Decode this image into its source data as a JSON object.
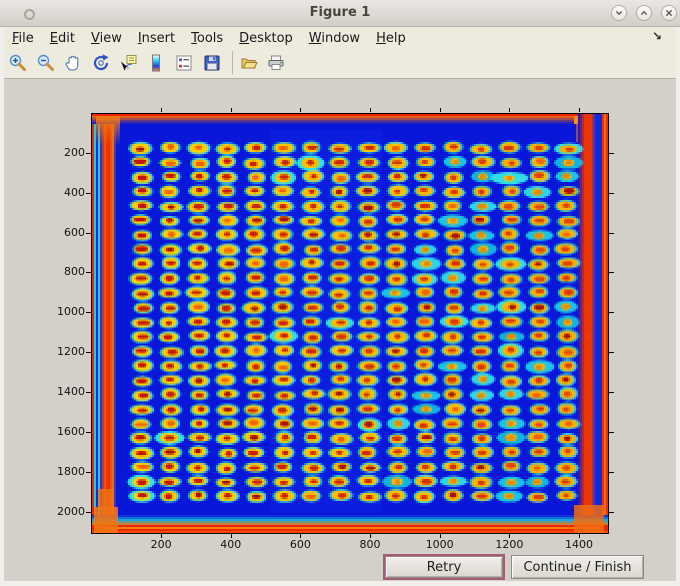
{
  "window": {
    "title": "Figure 1",
    "controls": [
      {
        "name": "minimize-button",
        "glyph": "chevron-down"
      },
      {
        "name": "maximize-button",
        "glyph": "chevron-up"
      },
      {
        "name": "close-button",
        "glyph": "x"
      }
    ]
  },
  "menu": {
    "items": [
      {
        "label": "File",
        "mnemonic": "F"
      },
      {
        "label": "Edit",
        "mnemonic": "E"
      },
      {
        "label": "View",
        "mnemonic": "V"
      },
      {
        "label": "Insert",
        "mnemonic": "I"
      },
      {
        "label": "Tools",
        "mnemonic": "T"
      },
      {
        "label": "Desktop",
        "mnemonic": "D"
      },
      {
        "label": "Window",
        "mnemonic": "W"
      },
      {
        "label": "Help",
        "mnemonic": "H"
      }
    ],
    "overflow_glyph": "↘"
  },
  "toolbar": {
    "tools": [
      {
        "name": "zoom-in"
      },
      {
        "name": "zoom-out"
      },
      {
        "name": "pan"
      },
      {
        "name": "rotate-3d"
      },
      {
        "name": "data-cursor"
      },
      {
        "name": "insert-colorbar"
      },
      {
        "name": "insert-legend"
      },
      {
        "name": "save-figure"
      },
      {
        "name": "separator"
      },
      {
        "name": "open-file"
      },
      {
        "name": "print-figure"
      }
    ]
  },
  "plot": {
    "x_ticks": [
      200,
      400,
      600,
      800,
      1000,
      1200,
      1400
    ],
    "y_ticks": [
      200,
      400,
      600,
      800,
      1000,
      1200,
      1400,
      1600,
      1800,
      2000
    ],
    "grid": {
      "cols": 16,
      "rows": 25
    },
    "colors": {
      "background_blue": "#0817d8",
      "halo_cyan": "#1cc8e8",
      "ring_yellow": "#ffd400",
      "edge_red": "#ee2600",
      "edge_orange": "#f07414",
      "core_dark_red": "#c01600",
      "core_orange_red": "#e64e00"
    }
  },
  "chart_data": {
    "type": "heatmap",
    "title": "",
    "xlabel": "",
    "ylabel": "",
    "x_ticks": [
      200,
      400,
      600,
      800,
      1000,
      1200,
      1400
    ],
    "y_ticks": [
      200,
      400,
      600,
      800,
      1000,
      1200,
      1400,
      1600,
      1800,
      2000
    ],
    "x_range": [
      1,
      1480
    ],
    "y_range": [
      1,
      2110
    ],
    "y_axis_direction": "reversed",
    "colormap": "jet",
    "legend": "none",
    "grid_lines": "off",
    "description": "Pseudocolor (jet) scan of a microarray/plate: a 16-column by 25-row grid of elliptical spots with red-orange cores, yellow rings and cyan halos on a deep blue background; plate edges glow red/orange on all four sides",
    "spot_grid": {
      "cols": 16,
      "rows": 25,
      "first_col_x": 146,
      "col_spacing_x": 81,
      "first_row_y": 176,
      "row_spacing_y": 73
    }
  },
  "buttons": {
    "retry": {
      "label": "Retry"
    },
    "continue": {
      "label": "Continue / Finish"
    }
  },
  "ui_colors": {
    "chrome_beige": "#edeade",
    "canvas_gray": "#d3cfc9",
    "titlebar_gray": "#d9d6d0",
    "focus_ring": "#a55d76"
  }
}
